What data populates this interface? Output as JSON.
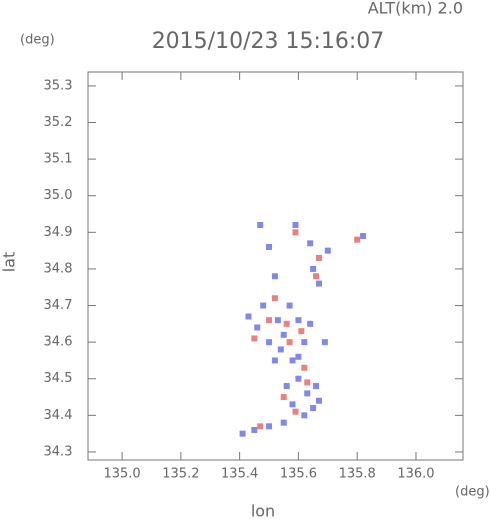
{
  "chart_data": {
    "type": "scatter",
    "title": "2015/10/23 15:16:07",
    "subtitle": "ALT(km) 2.0",
    "y_unit": "(deg)",
    "x_unit": "(deg)",
    "xlabel": "lon",
    "ylabel": "lat",
    "xlim": [
      134.884,
      136.16
    ],
    "ylim": [
      34.278,
      35.338
    ],
    "xticks": [
      {
        "value": 135,
        "label": "135.0"
      },
      135.2,
      135.4,
      135.6,
      135.8,
      {
        "value": 136,
        "label": "136.0"
      }
    ],
    "yticks": [
      34.3,
      34.4,
      34.5,
      34.6,
      34.7,
      34.8,
      34.9,
      {
        "value": 35,
        "label": "35.0"
      },
      35.1,
      35.2,
      35.3
    ],
    "series": [
      {
        "color": "#6a74e8",
        "x": [
          135.47,
          135.59,
          135.5,
          135.52,
          135.64,
          135.65,
          135.67,
          135.7,
          135.82,
          135.43,
          135.46,
          135.5,
          135.55,
          135.6,
          135.62,
          135.58,
          135.52,
          135.6,
          135.63,
          135.65,
          135.58,
          135.56,
          135.62,
          135.66,
          135.55,
          135.5,
          135.45,
          135.41,
          135.48,
          135.57,
          135.64,
          135.69,
          135.54,
          135.6,
          135.67,
          135.53
        ],
        "values": [
          34.92,
          34.92,
          34.86,
          34.78,
          34.87,
          34.8,
          34.76,
          34.85,
          34.89,
          34.67,
          34.64,
          34.6,
          34.62,
          34.66,
          34.6,
          34.55,
          34.55,
          34.5,
          34.46,
          34.42,
          34.43,
          34.48,
          34.4,
          34.48,
          34.38,
          34.37,
          34.36,
          34.35,
          34.7,
          34.7,
          34.65,
          34.6,
          34.58,
          34.56,
          34.44,
          34.66
        ]
      },
      {
        "color": "#e86a6a",
        "x": [
          135.59,
          135.67,
          135.52,
          135.56,
          135.5,
          135.61,
          135.57,
          135.55,
          135.63,
          135.59,
          135.47,
          135.62,
          135.66,
          135.8,
          135.45
        ],
        "values": [
          34.9,
          34.83,
          34.72,
          34.65,
          34.66,
          34.63,
          34.6,
          34.45,
          34.49,
          34.41,
          34.37,
          34.53,
          34.78,
          34.88,
          34.61
        ]
      }
    ]
  }
}
